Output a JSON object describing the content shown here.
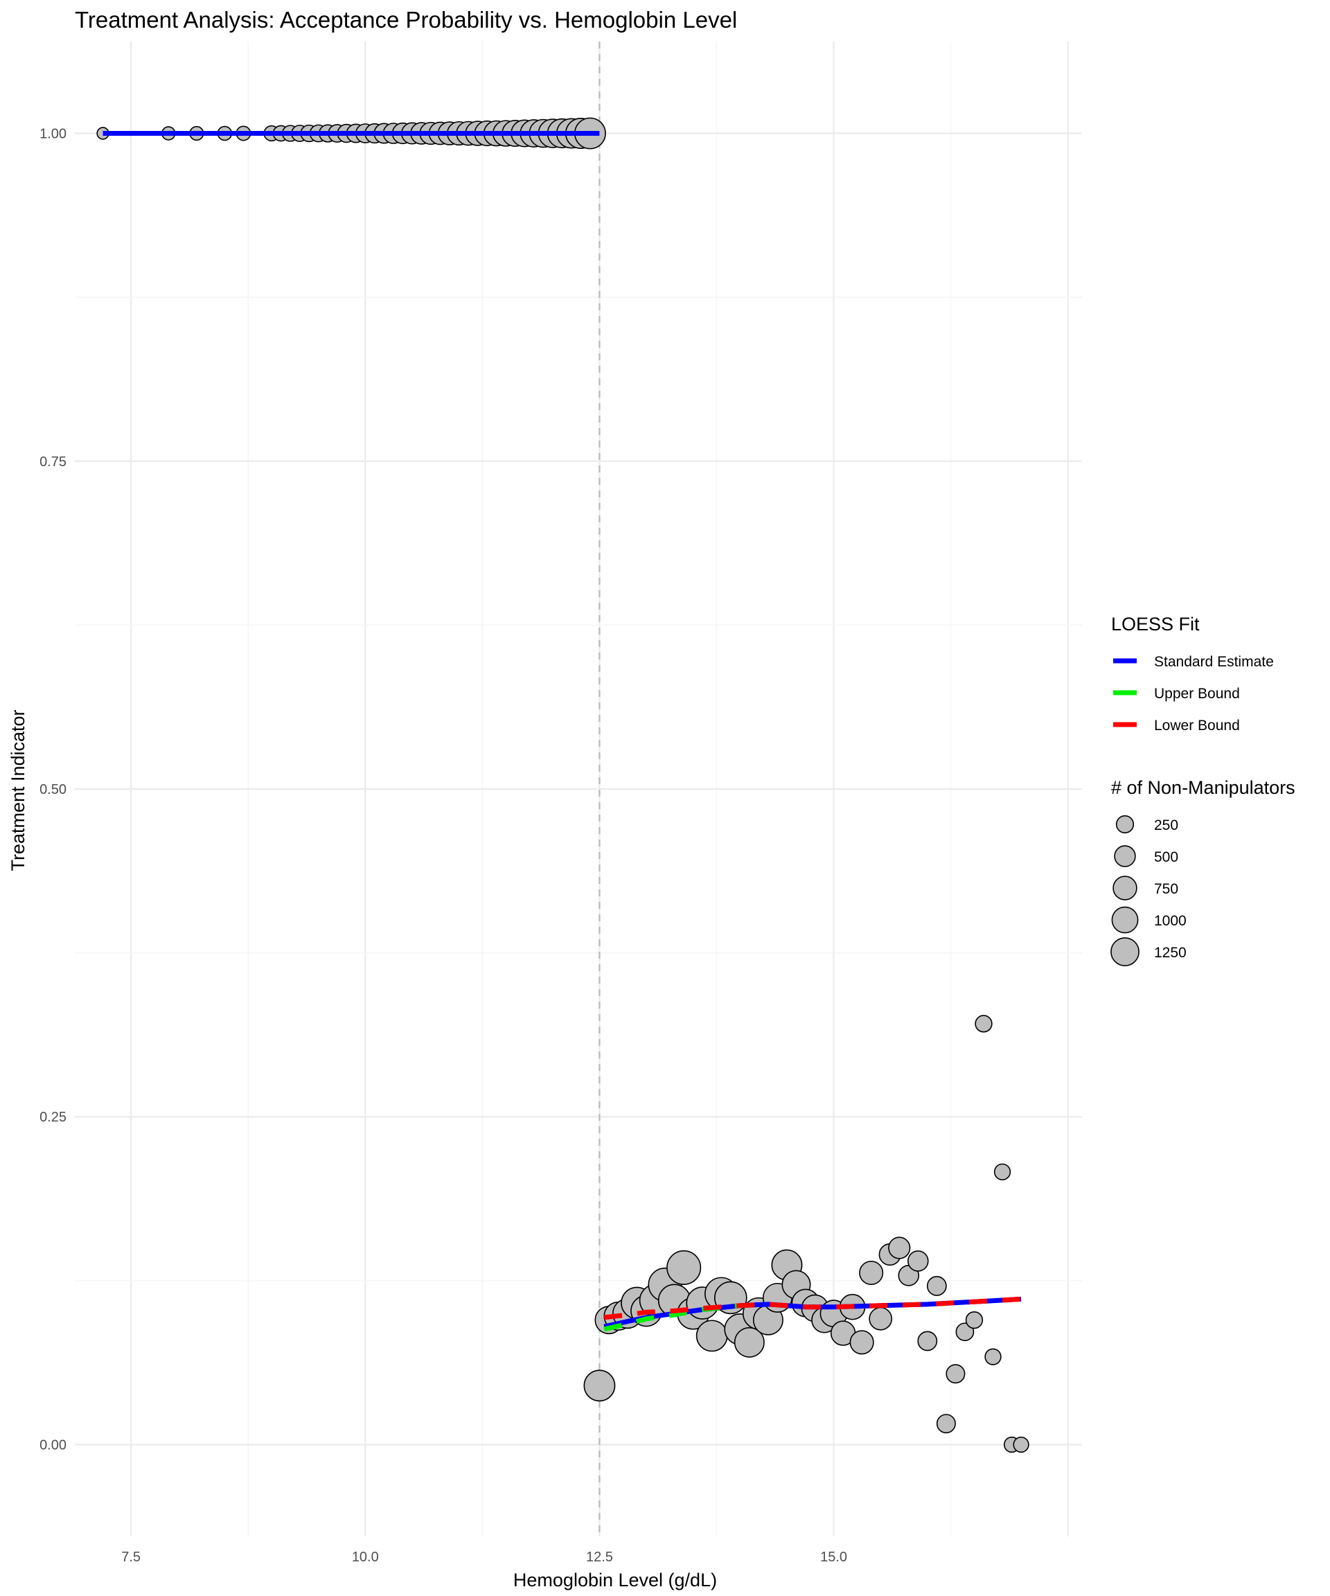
{
  "chart_data": {
    "type": "scatter",
    "title": "Treatment Analysis: Acceptance Probability vs. Hemoglobin Level",
    "xlabel": "Hemoglobin Level (g/dL)",
    "ylabel": "Treatment Indicator",
    "xlim": [
      6.9,
      17.65
    ],
    "ylim": [
      -0.07,
      1.07
    ],
    "x_ticks": [
      7.5,
      10.0,
      12.5,
      15.0
    ],
    "x_tick_labels": [
      "7.5",
      "10.0",
      "12.5",
      "15.0"
    ],
    "y_ticks": [
      0.0,
      0.25,
      0.5,
      0.75,
      1.0
    ],
    "y_tick_labels": [
      "0.00",
      "0.25",
      "0.50",
      "0.75",
      "1.00"
    ],
    "grid": true,
    "cutoff_line": {
      "x": 12.5,
      "style": "dashed",
      "color": "#bdbdbd"
    },
    "point_color": "#bebebe",
    "point_border": "#000000",
    "points_left": {
      "x": [
        7.2,
        7.9,
        8.2,
        8.5,
        8.7,
        9.0,
        9.1,
        9.2,
        9.3,
        9.4,
        9.5,
        9.6,
        9.7,
        9.8,
        9.9,
        10.0,
        10.1,
        10.2,
        10.3,
        10.4,
        10.5,
        10.6,
        10.7,
        10.8,
        10.9,
        11.0,
        11.1,
        11.2,
        11.3,
        11.4,
        11.5,
        11.6,
        11.7,
        11.8,
        11.9,
        12.0,
        12.1,
        12.2,
        12.3,
        12.4
      ],
      "y": [
        1,
        1,
        1,
        1,
        1,
        1,
        1,
        1,
        1,
        1,
        1,
        1,
        1,
        1,
        1,
        1,
        1,
        1,
        1,
        1,
        1,
        1,
        1,
        1,
        1,
        1,
        1,
        1,
        1,
        1,
        1,
        1,
        1,
        1,
        1,
        1,
        1,
        1,
        1,
        1
      ],
      "n": [
        20,
        40,
        50,
        55,
        60,
        80,
        90,
        100,
        110,
        120,
        130,
        140,
        150,
        165,
        180,
        195,
        210,
        230,
        250,
        270,
        290,
        310,
        330,
        350,
        380,
        400,
        420,
        450,
        480,
        500,
        530,
        560,
        600,
        640,
        680,
        720,
        760,
        800,
        850,
        900
      ]
    },
    "points_right": {
      "x": [
        12.5,
        12.6,
        12.7,
        12.8,
        12.9,
        13.0,
        13.1,
        13.2,
        13.3,
        13.4,
        13.5,
        13.6,
        13.7,
        13.8,
        13.9,
        14.0,
        14.1,
        14.2,
        14.3,
        14.4,
        14.5,
        14.6,
        14.7,
        14.8,
        14.9,
        15.0,
        15.1,
        15.2,
        15.3,
        15.4,
        15.5,
        15.6,
        15.7,
        15.8,
        15.9,
        16.0,
        16.1,
        16.2,
        16.3,
        16.4,
        16.5,
        16.6,
        16.7,
        16.8,
        16.9,
        17.0
      ],
      "y": [
        0.045,
        0.095,
        0.098,
        0.1,
        0.108,
        0.102,
        0.11,
        0.122,
        0.11,
        0.135,
        0.1,
        0.108,
        0.083,
        0.115,
        0.112,
        0.088,
        0.078,
        0.1,
        0.095,
        0.112,
        0.137,
        0.122,
        0.108,
        0.104,
        0.095,
        0.1,
        0.085,
        0.105,
        0.078,
        0.131,
        0.096,
        0.145,
        0.15,
        0.129,
        0.14,
        0.079,
        0.121,
        0.016,
        0.054,
        0.086,
        0.095,
        0.321,
        0.067,
        0.208,
        0.0,
        0.0
      ],
      "n": [
        900,
        650,
        700,
        800,
        950,
        900,
        1000,
        1100,
        1000,
        1150,
        950,
        1000,
        900,
        1050,
        1000,
        900,
        800,
        950,
        800,
        750,
        850,
        700,
        650,
        600,
        500,
        600,
        450,
        500,
        400,
        400,
        350,
        300,
        300,
        250,
        250,
        200,
        200,
        180,
        180,
        150,
        120,
        120,
        100,
        100,
        80,
        80
      ]
    },
    "series": [
      {
        "name": "Standard Estimate",
        "color": "#0000ff",
        "dash": "solid",
        "segments": [
          {
            "x": [
              7.2,
              12.5
            ],
            "y": [
              1.0,
              1.0
            ]
          },
          {
            "x": [
              12.55,
              12.8,
              13.0,
              13.3,
              13.6,
              14.0,
              14.3,
              14.7,
              15.0,
              15.5,
              16.0,
              16.5,
              17.0
            ],
            "y": [
              0.09,
              0.094,
              0.097,
              0.1,
              0.103,
              0.106,
              0.107,
              0.105,
              0.105,
              0.106,
              0.107,
              0.109,
              0.111
            ]
          }
        ]
      },
      {
        "name": "Upper Bound",
        "color": "#00ee00",
        "dash": "dashed",
        "segments": [
          {
            "x": [
              12.55,
              12.8,
              13.0,
              13.3,
              13.6,
              14.0
            ],
            "y": [
              0.088,
              0.092,
              0.096,
              0.099,
              0.103,
              0.106
            ]
          }
        ]
      },
      {
        "name": "Lower Bound",
        "color": "#ff0000",
        "dash": "dashed",
        "segments": [
          {
            "x": [
              12.55,
              12.8,
              13.0,
              13.3,
              13.6,
              14.0,
              14.3,
              14.7,
              15.0,
              15.5,
              16.0,
              16.5,
              17.0
            ],
            "y": [
              0.097,
              0.099,
              0.101,
              0.102,
              0.104,
              0.106,
              0.107,
              0.105,
              0.105,
              0.106,
              0.107,
              0.109,
              0.111
            ]
          }
        ]
      }
    ],
    "legend": {
      "placement": "right",
      "color_title": "LOESS Fit",
      "color_entries": [
        "Standard Estimate",
        "Upper Bound",
        "Lower Bound"
      ],
      "size_title": "# of Non-Manipulators",
      "size_entries": [
        {
          "label": "250",
          "n": 250
        },
        {
          "label": "500",
          "n": 500
        },
        {
          "label": "750",
          "n": 750
        },
        {
          "label": "1000",
          "n": 1000
        },
        {
          "label": "1250",
          "n": 1250
        }
      ]
    }
  }
}
